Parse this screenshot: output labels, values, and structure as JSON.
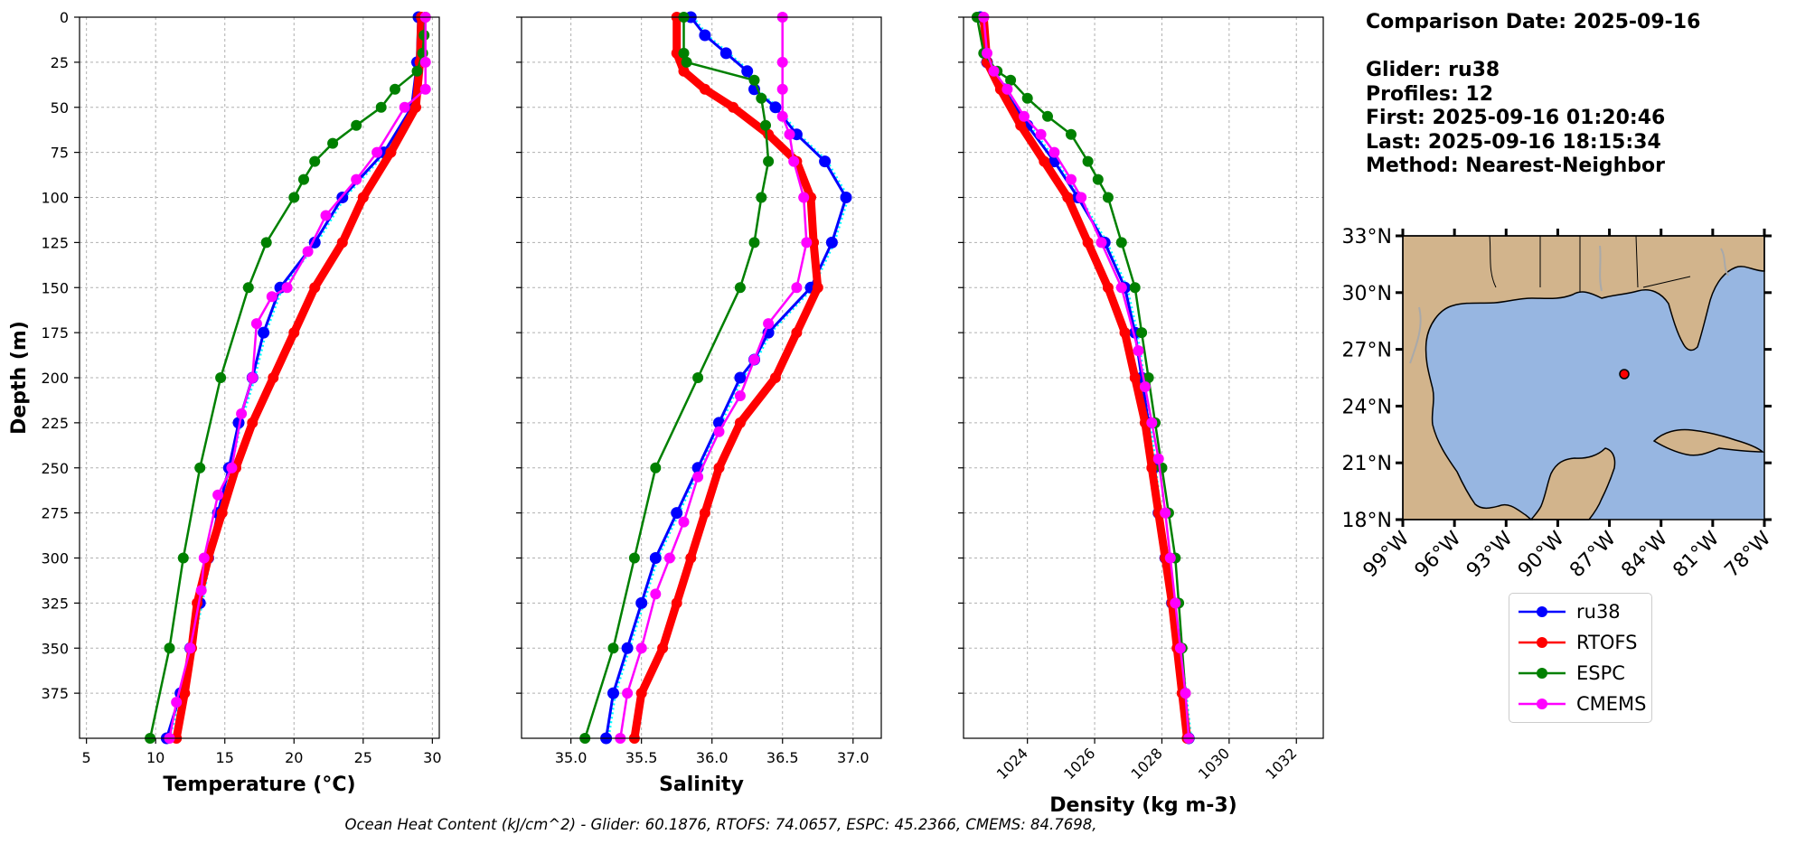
{
  "chart_data": [
    {
      "type": "line",
      "xlabel": "Temperature (°C)",
      "ylabel": "Depth (m)",
      "xlim": [
        4.5,
        30.5
      ],
      "ylim": [
        400,
        0
      ],
      "xticks": [
        "5",
        "10",
        "15",
        "20",
        "25",
        "30"
      ],
      "yticks": [
        "0",
        "25",
        "50",
        "75",
        "100",
        "125",
        "150",
        "175",
        "200",
        "225",
        "250",
        "275",
        "300",
        "325",
        "350",
        "375"
      ],
      "grid": true,
      "series": [
        {
          "name": "ru38",
          "color": "#0000ff",
          "points": [
            [
              29,
              0
            ],
            [
              28.9,
              25
            ],
            [
              28.5,
              50
            ],
            [
              26.5,
              75
            ],
            [
              23.5,
              100
            ],
            [
              21.5,
              125
            ],
            [
              19,
              150
            ],
            [
              17.8,
              175
            ],
            [
              17,
              200
            ],
            [
              16,
              225
            ],
            [
              15.3,
              250
            ],
            [
              14.5,
              275
            ],
            [
              13.8,
              300
            ],
            [
              13.2,
              325
            ],
            [
              12.5,
              350
            ],
            [
              11.8,
              375
            ],
            [
              10.8,
              400
            ]
          ]
        },
        {
          "name": "RTOFS",
          "color": "#ff0000",
          "points": [
            [
              29.2,
              0
            ],
            [
              29.1,
              25
            ],
            [
              28.8,
              50
            ],
            [
              27,
              75
            ],
            [
              25,
              100
            ],
            [
              23.5,
              125
            ],
            [
              21.5,
              150
            ],
            [
              20,
              175
            ],
            [
              18.5,
              200
            ],
            [
              17,
              225
            ],
            [
              15.8,
              250
            ],
            [
              14.8,
              275
            ],
            [
              13.8,
              300
            ],
            [
              13,
              325
            ],
            [
              12.6,
              350
            ],
            [
              12.1,
              375
            ],
            [
              11.5,
              400
            ]
          ]
        },
        {
          "name": "ESPC",
          "color": "#008000",
          "points": [
            [
              29.5,
              0
            ],
            [
              29.4,
              10
            ],
            [
              29.3,
              20
            ],
            [
              28.9,
              30
            ],
            [
              27.3,
              40
            ],
            [
              26.3,
              50
            ],
            [
              24.5,
              60
            ],
            [
              22.8,
              70
            ],
            [
              21.5,
              80
            ],
            [
              20.7,
              90
            ],
            [
              20,
              100
            ],
            [
              18,
              125
            ],
            [
              16.7,
              150
            ],
            [
              14.7,
              200
            ],
            [
              13.2,
              250
            ],
            [
              12,
              300
            ],
            [
              11,
              350
            ],
            [
              9.6,
              400
            ]
          ]
        },
        {
          "name": "CMEMS",
          "color": "#ff00ff",
          "points": [
            [
              29.5,
              0
            ],
            [
              29.5,
              25
            ],
            [
              29.5,
              40
            ],
            [
              28,
              50
            ],
            [
              26,
              75
            ],
            [
              24.5,
              90
            ],
            [
              22.3,
              110
            ],
            [
              21,
              130
            ],
            [
              19.5,
              150
            ],
            [
              18.4,
              155
            ],
            [
              17.3,
              170
            ],
            [
              17,
              200
            ],
            [
              16.2,
              220
            ],
            [
              15.5,
              250
            ],
            [
              14.5,
              265
            ],
            [
              13.5,
              300
            ],
            [
              13.3,
              318
            ],
            [
              12.5,
              350
            ],
            [
              11.5,
              380
            ],
            [
              11,
              400
            ]
          ]
        }
      ]
    },
    {
      "type": "line",
      "xlabel": "Salinity",
      "xlim": [
        34.65,
        37.2
      ],
      "ylim": [
        400,
        0
      ],
      "xticks": [
        "35.0",
        "35.5",
        "36.0",
        "36.5",
        "37.0"
      ],
      "grid": true,
      "series": [
        {
          "name": "ru38",
          "color": "#0000ff",
          "points": [
            [
              35.85,
              0
            ],
            [
              35.95,
              10
            ],
            [
              36.1,
              20
            ],
            [
              36.25,
              30
            ],
            [
              36.3,
              40
            ],
            [
              36.45,
              50
            ],
            [
              36.6,
              65
            ],
            [
              36.8,
              80
            ],
            [
              36.95,
              100
            ],
            [
              36.85,
              125
            ],
            [
              36.7,
              150
            ],
            [
              36.4,
              175
            ],
            [
              36.3,
              190
            ],
            [
              36.2,
              200
            ],
            [
              36.05,
              225
            ],
            [
              35.9,
              250
            ],
            [
              35.75,
              275
            ],
            [
              35.6,
              300
            ],
            [
              35.5,
              325
            ],
            [
              35.4,
              350
            ],
            [
              35.3,
              375
            ],
            [
              35.25,
              400
            ]
          ]
        },
        {
          "name": "RTOFS",
          "color": "#ff0000",
          "points": [
            [
              35.75,
              0
            ],
            [
              35.75,
              20
            ],
            [
              35.8,
              30
            ],
            [
              35.95,
              40
            ],
            [
              36.15,
              50
            ],
            [
              36.4,
              65
            ],
            [
              36.6,
              80
            ],
            [
              36.7,
              100
            ],
            [
              36.72,
              125
            ],
            [
              36.75,
              150
            ],
            [
              36.6,
              175
            ],
            [
              36.45,
              200
            ],
            [
              36.2,
              225
            ],
            [
              36.05,
              250
            ],
            [
              35.95,
              275
            ],
            [
              35.85,
              300
            ],
            [
              35.75,
              325
            ],
            [
              35.65,
              350
            ],
            [
              35.5,
              375
            ],
            [
              35.45,
              400
            ]
          ]
        },
        {
          "name": "ESPC",
          "color": "#008000",
          "points": [
            [
              35.8,
              0
            ],
            [
              35.8,
              20
            ],
            [
              35.82,
              25
            ],
            [
              36.3,
              35
            ],
            [
              36.35,
              45
            ],
            [
              36.38,
              60
            ],
            [
              36.4,
              80
            ],
            [
              36.35,
              100
            ],
            [
              36.3,
              125
            ],
            [
              36.2,
              150
            ],
            [
              35.9,
              200
            ],
            [
              35.6,
              250
            ],
            [
              35.45,
              300
            ],
            [
              35.3,
              350
            ],
            [
              35.1,
              400
            ]
          ]
        },
        {
          "name": "CMEMS",
          "color": "#ff00ff",
          "points": [
            [
              36.5,
              0
            ],
            [
              36.5,
              25
            ],
            [
              36.5,
              40
            ],
            [
              36.5,
              55
            ],
            [
              36.55,
              65
            ],
            [
              36.58,
              80
            ],
            [
              36.65,
              100
            ],
            [
              36.67,
              125
            ],
            [
              36.6,
              150
            ],
            [
              36.4,
              170
            ],
            [
              36.3,
              190
            ],
            [
              36.2,
              210
            ],
            [
              36.05,
              230
            ],
            [
              35.9,
              255
            ],
            [
              35.8,
              280
            ],
            [
              35.7,
              300
            ],
            [
              35.6,
              320
            ],
            [
              35.5,
              350
            ],
            [
              35.4,
              375
            ],
            [
              35.35,
              400
            ]
          ]
        }
      ]
    },
    {
      "type": "line",
      "xlabel": "Density (kg m-3)",
      "xlim": [
        1022.1,
        1032.8
      ],
      "ylim": [
        400,
        0
      ],
      "xticks": [
        "1024",
        "1026",
        "1028",
        "1030",
        "1032"
      ],
      "grid": true,
      "series": [
        {
          "name": "ru38",
          "color": "#0000ff",
          "points": [
            [
              1022.6,
              0
            ],
            [
              1022.8,
              25
            ],
            [
              1023.3,
              40
            ],
            [
              1024,
              60
            ],
            [
              1024.8,
              80
            ],
            [
              1025.5,
              100
            ],
            [
              1026.3,
              125
            ],
            [
              1026.9,
              150
            ],
            [
              1027.2,
              175
            ],
            [
              1027.4,
              200
            ],
            [
              1027.6,
              225
            ],
            [
              1027.75,
              250
            ],
            [
              1027.9,
              275
            ],
            [
              1028.1,
              300
            ],
            [
              1028.3,
              325
            ],
            [
              1028.5,
              350
            ],
            [
              1028.65,
              375
            ],
            [
              1028.8,
              400
            ]
          ]
        },
        {
          "name": "RTOFS",
          "color": "#ff0000",
          "points": [
            [
              1022.7,
              0
            ],
            [
              1022.8,
              25
            ],
            [
              1023.2,
              40
            ],
            [
              1023.8,
              60
            ],
            [
              1024.5,
              80
            ],
            [
              1025.2,
              100
            ],
            [
              1025.8,
              125
            ],
            [
              1026.4,
              150
            ],
            [
              1026.9,
              175
            ],
            [
              1027.2,
              200
            ],
            [
              1027.5,
              225
            ],
            [
              1027.7,
              250
            ],
            [
              1027.9,
              275
            ],
            [
              1028.1,
              300
            ],
            [
              1028.3,
              325
            ],
            [
              1028.45,
              350
            ],
            [
              1028.6,
              375
            ],
            [
              1028.75,
              400
            ]
          ]
        },
        {
          "name": "ESPC",
          "color": "#008000",
          "points": [
            [
              1022.5,
              0
            ],
            [
              1022.7,
              20
            ],
            [
              1023.1,
              30
            ],
            [
              1023.5,
              35
            ],
            [
              1024,
              45
            ],
            [
              1024.6,
              55
            ],
            [
              1025.3,
              65
            ],
            [
              1025.8,
              80
            ],
            [
              1026.1,
              90
            ],
            [
              1026.4,
              100
            ],
            [
              1026.8,
              125
            ],
            [
              1027.2,
              150
            ],
            [
              1027.4,
              175
            ],
            [
              1027.6,
              200
            ],
            [
              1027.8,
              225
            ],
            [
              1028,
              250
            ],
            [
              1028.2,
              275
            ],
            [
              1028.4,
              300
            ],
            [
              1028.5,
              325
            ],
            [
              1028.6,
              350
            ],
            [
              1028.7,
              375
            ],
            [
              1028.8,
              400
            ]
          ]
        },
        {
          "name": "CMEMS",
          "color": "#ff00ff",
          "points": [
            [
              1022.7,
              0
            ],
            [
              1022.8,
              20
            ],
            [
              1023,
              30
            ],
            [
              1023.4,
              40
            ],
            [
              1023.9,
              55
            ],
            [
              1024.4,
              65
            ],
            [
              1024.8,
              75
            ],
            [
              1025.3,
              90
            ],
            [
              1025.6,
              100
            ],
            [
              1026.2,
              125
            ],
            [
              1026.8,
              150
            ],
            [
              1027.3,
              185
            ],
            [
              1027.5,
              205
            ],
            [
              1027.7,
              225
            ],
            [
              1027.9,
              245
            ],
            [
              1028.1,
              275
            ],
            [
              1028.25,
              300
            ],
            [
              1028.4,
              325
            ],
            [
              1028.55,
              350
            ],
            [
              1028.7,
              375
            ],
            [
              1028.8,
              400
            ]
          ]
        }
      ]
    }
  ],
  "info": {
    "comparison_date": "Comparison Date: 2025-09-16",
    "glider": "Glider: ru38",
    "profiles": "Profiles: 12",
    "first": "First: 2025-09-16 01:20:46",
    "last": "Last: 2025-09-16 18:15:34",
    "method": "Method: Nearest-Neighbor"
  },
  "map": {
    "lat_labels": [
      "33°N",
      "30°N",
      "27°N",
      "24°N",
      "21°N",
      "18°N"
    ],
    "lon_labels": [
      "99°W",
      "96°W",
      "93°W",
      "90°W",
      "87°W",
      "84°W",
      "81°W",
      "78°W"
    ],
    "land_color": "#d2b48c",
    "ocean_color": "#97b6e1",
    "marker_color": "#ff0000"
  },
  "legend": {
    "items": [
      {
        "label": "ru38",
        "color": "#0000ff"
      },
      {
        "label": "RTOFS",
        "color": "#ff0000"
      },
      {
        "label": "ESPC",
        "color": "#008000"
      },
      {
        "label": "CMEMS",
        "color": "#ff00ff"
      }
    ]
  },
  "footer": {
    "ohc": "Ocean Heat Content (kJ/cm^2) - Glider: 60.1876,  RTOFS: 74.0657,  ESPC: 45.2366,  CMEMS: 84.7698,"
  }
}
